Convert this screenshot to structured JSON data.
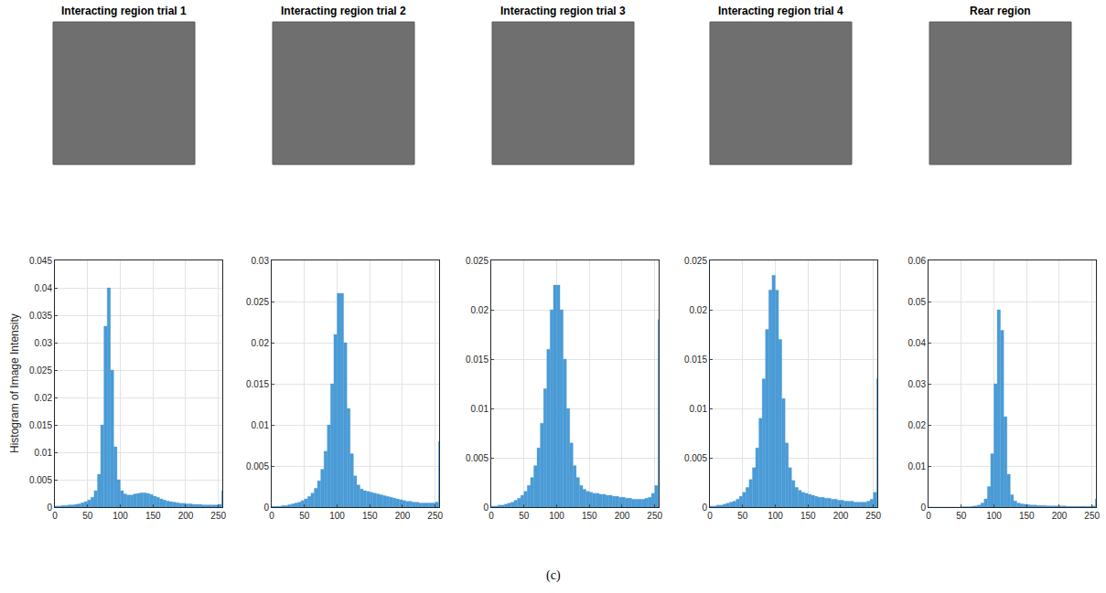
{
  "figure_label": "(c)",
  "chart_data": [
    {
      "type": "histogram",
      "title": "Interacting region trial 1",
      "ylabel": "Histogram of Image Intensity",
      "color": "#4a9bd6",
      "grid": true,
      "xlim": [
        0,
        256
      ],
      "xticks": [
        0,
        50,
        100,
        150,
        200,
        250
      ],
      "ylim": [
        0,
        0.045
      ],
      "yticks": [
        0,
        0.005,
        0.01,
        0.015,
        0.02,
        0.025,
        0.03,
        0.035,
        0.04,
        0.045
      ],
      "bins": [
        0,
        5,
        10,
        15,
        20,
        25,
        30,
        35,
        40,
        45,
        50,
        55,
        60,
        65,
        70,
        75,
        80,
        85,
        90,
        95,
        100,
        105,
        110,
        115,
        120,
        125,
        130,
        135,
        140,
        145,
        150,
        155,
        160,
        165,
        170,
        175,
        180,
        185,
        190,
        195,
        200,
        205,
        210,
        215,
        220,
        225,
        230,
        235,
        240,
        245,
        250,
        255,
        256
      ],
      "values": [
        0.0002,
        0.0002,
        0.0003,
        0.0003,
        0.0004,
        0.0004,
        0.0005,
        0.0006,
        0.0008,
        0.001,
        0.0013,
        0.0018,
        0.003,
        0.006,
        0.015,
        0.033,
        0.04,
        0.025,
        0.011,
        0.005,
        0.003,
        0.0024,
        0.0022,
        0.0022,
        0.0024,
        0.0025,
        0.0026,
        0.0026,
        0.0025,
        0.0023,
        0.002,
        0.0018,
        0.0015,
        0.0013,
        0.0011,
        0.001,
        0.0009,
        0.0008,
        0.0007,
        0.0007,
        0.0006,
        0.0006,
        0.0005,
        0.0005,
        0.0005,
        0.0004,
        0.0004,
        0.0004,
        0.0004,
        0.0004,
        0.0005,
        0.003
      ]
    },
    {
      "type": "histogram",
      "title": "Interacting region trial 2",
      "color": "#4a9bd6",
      "grid": true,
      "xlim": [
        0,
        256
      ],
      "xticks": [
        0,
        50,
        100,
        150,
        200,
        250
      ],
      "ylim": [
        0,
        0.03
      ],
      "yticks": [
        0,
        0.005,
        0.01,
        0.015,
        0.02,
        0.025,
        0.03
      ],
      "bins": [
        0,
        5,
        10,
        15,
        20,
        25,
        30,
        35,
        40,
        45,
        50,
        55,
        60,
        65,
        70,
        75,
        80,
        85,
        90,
        95,
        100,
        105,
        110,
        115,
        120,
        125,
        130,
        135,
        140,
        145,
        150,
        155,
        160,
        165,
        170,
        175,
        180,
        185,
        190,
        195,
        200,
        205,
        210,
        215,
        220,
        225,
        230,
        235,
        240,
        245,
        250,
        255,
        256
      ],
      "values": [
        0.0001,
        0.0001,
        0.0001,
        0.0002,
        0.0002,
        0.0003,
        0.0004,
        0.0005,
        0.0006,
        0.0008,
        0.001,
        0.0013,
        0.0017,
        0.0023,
        0.0032,
        0.0046,
        0.0068,
        0.01,
        0.015,
        0.021,
        0.026,
        0.026,
        0.02,
        0.012,
        0.0065,
        0.0038,
        0.0027,
        0.0022,
        0.002,
        0.0019,
        0.0018,
        0.0017,
        0.0016,
        0.0015,
        0.0014,
        0.0013,
        0.0012,
        0.0011,
        0.001,
        0.0009,
        0.0008,
        0.0007,
        0.0007,
        0.0006,
        0.0006,
        0.0005,
        0.0005,
        0.0005,
        0.0005,
        0.0005,
        0.0006,
        0.008
      ]
    },
    {
      "type": "histogram",
      "title": "Interacting region trial 3",
      "color": "#4a9bd6",
      "grid": true,
      "xlim": [
        0,
        256
      ],
      "xticks": [
        0,
        50,
        100,
        150,
        200,
        250
      ],
      "ylim": [
        0,
        0.025
      ],
      "yticks": [
        0,
        0.005,
        0.01,
        0.015,
        0.02,
        0.025
      ],
      "bins": [
        0,
        5,
        10,
        15,
        20,
        25,
        30,
        35,
        40,
        45,
        50,
        55,
        60,
        65,
        70,
        75,
        80,
        85,
        90,
        95,
        100,
        105,
        110,
        115,
        120,
        125,
        130,
        135,
        140,
        145,
        150,
        155,
        160,
        165,
        170,
        175,
        180,
        185,
        190,
        195,
        200,
        205,
        210,
        215,
        220,
        225,
        230,
        235,
        240,
        245,
        250,
        255,
        256
      ],
      "values": [
        0.0001,
        0.0001,
        0.0002,
        0.0002,
        0.0003,
        0.0004,
        0.0005,
        0.0007,
        0.0009,
        0.0012,
        0.0016,
        0.0022,
        0.003,
        0.0042,
        0.006,
        0.0085,
        0.012,
        0.016,
        0.02,
        0.0225,
        0.0225,
        0.02,
        0.015,
        0.01,
        0.0065,
        0.0042,
        0.003,
        0.0022,
        0.0018,
        0.0016,
        0.0015,
        0.0014,
        0.0014,
        0.0013,
        0.0013,
        0.0012,
        0.0012,
        0.0011,
        0.0011,
        0.001,
        0.001,
        0.0009,
        0.0009,
        0.0008,
        0.0008,
        0.0008,
        0.0008,
        0.0009,
        0.001,
        0.0014,
        0.0022,
        0.019
      ]
    },
    {
      "type": "histogram",
      "title": "Interacting region trial 4",
      "color": "#4a9bd6",
      "grid": true,
      "xlim": [
        0,
        256
      ],
      "xticks": [
        0,
        50,
        100,
        150,
        200,
        250
      ],
      "ylim": [
        0,
        0.025
      ],
      "yticks": [
        0,
        0.005,
        0.01,
        0.015,
        0.02,
        0.025
      ],
      "bins": [
        0,
        5,
        10,
        15,
        20,
        25,
        30,
        35,
        40,
        45,
        50,
        55,
        60,
        65,
        70,
        75,
        80,
        85,
        90,
        95,
        100,
        105,
        110,
        115,
        120,
        125,
        130,
        135,
        140,
        145,
        150,
        155,
        160,
        165,
        170,
        175,
        180,
        185,
        190,
        195,
        200,
        205,
        210,
        215,
        220,
        225,
        230,
        235,
        240,
        245,
        250,
        255,
        256
      ],
      "values": [
        0.0001,
        0.0001,
        0.0002,
        0.0002,
        0.0003,
        0.0004,
        0.0005,
        0.0006,
        0.0008,
        0.0011,
        0.0015,
        0.002,
        0.0028,
        0.004,
        0.006,
        0.009,
        0.013,
        0.018,
        0.022,
        0.0235,
        0.022,
        0.017,
        0.011,
        0.0065,
        0.004,
        0.0027,
        0.002,
        0.0017,
        0.0015,
        0.0014,
        0.0013,
        0.0012,
        0.0011,
        0.001,
        0.001,
        0.0009,
        0.0009,
        0.0008,
        0.0008,
        0.0007,
        0.0007,
        0.0006,
        0.0006,
        0.0006,
        0.0005,
        0.0005,
        0.0005,
        0.0005,
        0.0006,
        0.0008,
        0.0015,
        0.013
      ]
    },
    {
      "type": "histogram",
      "title": "Rear region",
      "color": "#4a9bd6",
      "grid": true,
      "xlim": [
        0,
        256
      ],
      "xticks": [
        0,
        50,
        100,
        150,
        200,
        250
      ],
      "ylim": [
        0,
        0.06
      ],
      "yticks": [
        0,
        0.01,
        0.02,
        0.03,
        0.04,
        0.05,
        0.06
      ],
      "bins": [
        0,
        5,
        10,
        15,
        20,
        25,
        30,
        35,
        40,
        45,
        50,
        55,
        60,
        65,
        70,
        75,
        80,
        85,
        90,
        95,
        100,
        105,
        110,
        115,
        120,
        125,
        130,
        135,
        140,
        145,
        150,
        155,
        160,
        165,
        170,
        175,
        180,
        185,
        190,
        195,
        200,
        205,
        210,
        215,
        220,
        225,
        230,
        235,
        240,
        245,
        250,
        255,
        256
      ],
      "values": [
        0,
        0,
        0,
        0,
        0,
        0,
        0,
        0,
        0,
        0,
        0.0001,
        0.0001,
        0.0001,
        0.0002,
        0.0003,
        0.0005,
        0.001,
        0.002,
        0.005,
        0.013,
        0.03,
        0.048,
        0.043,
        0.022,
        0.008,
        0.003,
        0.0015,
        0.001,
        0.0008,
        0.0007,
        0.0006,
        0.0005,
        0.0005,
        0.0004,
        0.0004,
        0.0004,
        0.0003,
        0.0003,
        0.0003,
        0.0003,
        0.0003,
        0.0003,
        0.0002,
        0.0002,
        0.0002,
        0.0002,
        0.0002,
        0.0002,
        0.0002,
        0.0002,
        0.0003,
        0.002
      ]
    }
  ]
}
